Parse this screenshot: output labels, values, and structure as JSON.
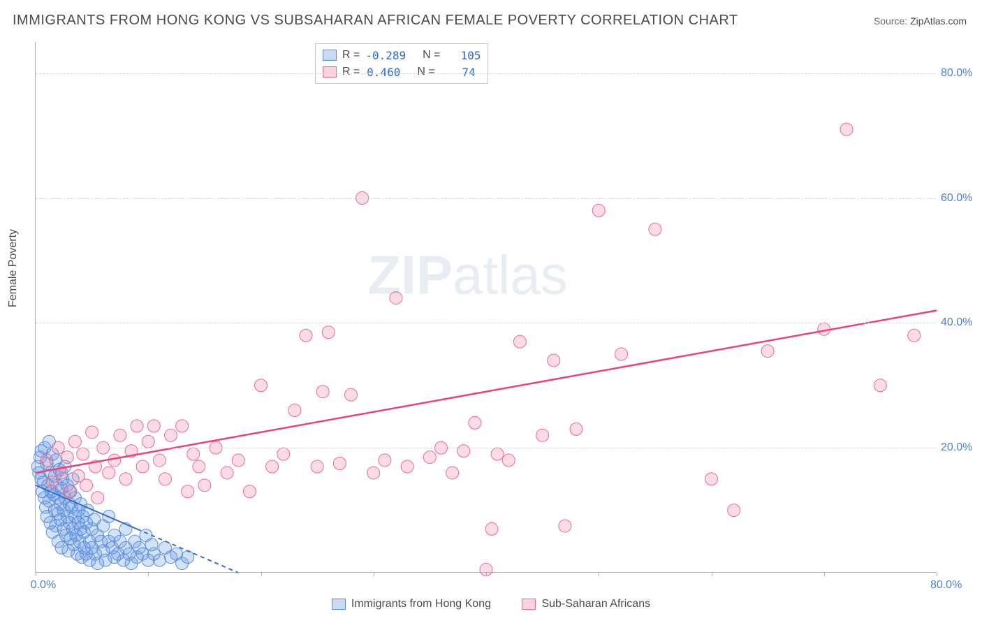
{
  "title": "IMMIGRANTS FROM HONG KONG VS SUBSAHARAN AFRICAN FEMALE POVERTY CORRELATION CHART",
  "source_label": "Source:",
  "source_value": "ZipAtlas.com",
  "y_axis_label": "Female Poverty",
  "watermark_a": "ZIP",
  "watermark_b": "atlas",
  "chart": {
    "type": "scatter",
    "background_color": "#ffffff",
    "grid_color": "#d8d8d8",
    "axis_color": "#b0b0b0",
    "xlim": [
      0,
      80
    ],
    "ylim": [
      0,
      85
    ],
    "x_ticks": [
      0,
      10,
      20,
      30,
      40,
      50,
      60,
      70,
      80
    ],
    "x_tick_labels_shown": {
      "0": "0.0%",
      "80": "80.0%"
    },
    "y_ticks": [
      20,
      40,
      60,
      80
    ],
    "y_tick_labels": [
      "20.0%",
      "40.0%",
      "60.0%",
      "80.0%"
    ],
    "series": [
      {
        "name": "Immigrants from Hong Kong",
        "color_fill": "rgba(100,150,230,0.28)",
        "color_stroke": "#5a8fd8",
        "marker_radius": 9,
        "R": "-0.289",
        "N": "105",
        "trend": {
          "x1": 0,
          "y1": 14,
          "x2": 18,
          "y2": 0,
          "solid_until_x": 9,
          "color": "#3a6fc8",
          "width": 2
        },
        "points": [
          [
            0.2,
            17
          ],
          [
            0.3,
            16
          ],
          [
            0.4,
            18.5
          ],
          [
            0.5,
            15
          ],
          [
            0.5,
            19.5
          ],
          [
            0.6,
            13
          ],
          [
            0.7,
            14.5
          ],
          [
            0.8,
            20
          ],
          [
            0.8,
            12
          ],
          [
            0.9,
            10.5
          ],
          [
            1.0,
            17.5
          ],
          [
            1.0,
            9
          ],
          [
            1.1,
            14
          ],
          [
            1.2,
            21
          ],
          [
            1.2,
            11.5
          ],
          [
            1.3,
            8
          ],
          [
            1.3,
            16
          ],
          [
            1.4,
            13
          ],
          [
            1.5,
            19
          ],
          [
            1.5,
            6.5
          ],
          [
            1.6,
            12.5
          ],
          [
            1.7,
            10
          ],
          [
            1.7,
            15.5
          ],
          [
            1.8,
            7.5
          ],
          [
            1.8,
            18
          ],
          [
            1.9,
            14
          ],
          [
            2.0,
            5
          ],
          [
            2.0,
            12
          ],
          [
            2.0,
            9.5
          ],
          [
            2.1,
            16.5
          ],
          [
            2.2,
            8.5
          ],
          [
            2.2,
            11
          ],
          [
            2.3,
            13.5
          ],
          [
            2.3,
            4
          ],
          [
            2.4,
            15
          ],
          [
            2.5,
            10
          ],
          [
            2.5,
            7
          ],
          [
            2.6,
            17
          ],
          [
            2.6,
            12
          ],
          [
            2.7,
            6
          ],
          [
            2.8,
            9
          ],
          [
            2.8,
            14
          ],
          [
            2.9,
            3.5
          ],
          [
            3.0,
            11
          ],
          [
            3.0,
            8
          ],
          [
            3.1,
            5.5
          ],
          [
            3.1,
            13
          ],
          [
            3.2,
            10.5
          ],
          [
            3.3,
            7
          ],
          [
            3.3,
            15
          ],
          [
            3.4,
            4.5
          ],
          [
            3.5,
            9
          ],
          [
            3.5,
            12
          ],
          [
            3.6,
            6
          ],
          [
            3.7,
            3
          ],
          [
            3.8,
            10
          ],
          [
            3.8,
            8
          ],
          [
            3.9,
            5
          ],
          [
            4.0,
            11
          ],
          [
            4.0,
            7
          ],
          [
            4.1,
            2.5
          ],
          [
            4.2,
            9
          ],
          [
            4.3,
            4
          ],
          [
            4.3,
            6.5
          ],
          [
            4.5,
            8
          ],
          [
            4.5,
            3
          ],
          [
            4.6,
            10
          ],
          [
            4.8,
            5
          ],
          [
            4.8,
            2
          ],
          [
            5.0,
            7
          ],
          [
            5.0,
            4
          ],
          [
            5.2,
            8.5
          ],
          [
            5.3,
            3
          ],
          [
            5.5,
            6
          ],
          [
            5.5,
            1.5
          ],
          [
            5.8,
            5
          ],
          [
            6.0,
            7.5
          ],
          [
            6.0,
            3.5
          ],
          [
            6.2,
            2
          ],
          [
            6.5,
            5
          ],
          [
            6.5,
            9
          ],
          [
            6.8,
            4
          ],
          [
            7.0,
            2.5
          ],
          [
            7.0,
            6
          ],
          [
            7.3,
            3
          ],
          [
            7.5,
            5
          ],
          [
            7.8,
            2
          ],
          [
            8.0,
            4
          ],
          [
            8.0,
            7
          ],
          [
            8.3,
            3
          ],
          [
            8.5,
            1.5
          ],
          [
            8.8,
            5
          ],
          [
            9.0,
            2.5
          ],
          [
            9.2,
            4
          ],
          [
            9.5,
            3
          ],
          [
            9.8,
            6
          ],
          [
            10.0,
            2
          ],
          [
            10.3,
            4.5
          ],
          [
            10.5,
            3
          ],
          [
            11.0,
            2
          ],
          [
            11.5,
            4
          ],
          [
            12.0,
            2.5
          ],
          [
            12.5,
            3
          ],
          [
            13.0,
            1.5
          ],
          [
            13.5,
            2.5
          ]
        ]
      },
      {
        "name": "Sub-Saharan Africans",
        "color_fill": "rgba(240,130,160,0.28)",
        "color_stroke": "#e86a94",
        "marker_radius": 9,
        "R": "0.460",
        "N": "74",
        "trend": {
          "x1": 0,
          "y1": 16,
          "x2": 80,
          "y2": 42,
          "color": "#e8447a",
          "width": 2.5
        },
        "points": [
          [
            1.0,
            18
          ],
          [
            1.5,
            14.5
          ],
          [
            2.0,
            20
          ],
          [
            2.3,
            16
          ],
          [
            2.8,
            18.5
          ],
          [
            3.0,
            13
          ],
          [
            3.5,
            21
          ],
          [
            3.8,
            15.5
          ],
          [
            4.2,
            19
          ],
          [
            4.5,
            14
          ],
          [
            5.0,
            22.5
          ],
          [
            5.3,
            17
          ],
          [
            5.5,
            12
          ],
          [
            6.0,
            20
          ],
          [
            6.5,
            16
          ],
          [
            7.0,
            18
          ],
          [
            7.5,
            22
          ],
          [
            8.0,
            15
          ],
          [
            8.5,
            19.5
          ],
          [
            9.0,
            23.5
          ],
          [
            9.5,
            17
          ],
          [
            10.0,
            21
          ],
          [
            10.5,
            23.5
          ],
          [
            11.0,
            18
          ],
          [
            11.5,
            15
          ],
          [
            12.0,
            22
          ],
          [
            13.0,
            23.5
          ],
          [
            13.5,
            13
          ],
          [
            14.0,
            19
          ],
          [
            14.5,
            17
          ],
          [
            15.0,
            14
          ],
          [
            16.0,
            20
          ],
          [
            17.0,
            16
          ],
          [
            18.0,
            18
          ],
          [
            19.0,
            13
          ],
          [
            20.0,
            30
          ],
          [
            21.0,
            17
          ],
          [
            22.0,
            19
          ],
          [
            23.0,
            26
          ],
          [
            24.0,
            38
          ],
          [
            25.0,
            17
          ],
          [
            25.5,
            29
          ],
          [
            26.0,
            38.5
          ],
          [
            27.0,
            17.5
          ],
          [
            28.0,
            28.5
          ],
          [
            29.0,
            60
          ],
          [
            30.0,
            16
          ],
          [
            31.0,
            18
          ],
          [
            32.0,
            44
          ],
          [
            33.0,
            17
          ],
          [
            35.0,
            18.5
          ],
          [
            36.0,
            20
          ],
          [
            37.0,
            16
          ],
          [
            38.0,
            19.5
          ],
          [
            39.0,
            24
          ],
          [
            40.0,
            0.5
          ],
          [
            40.5,
            7
          ],
          [
            41.0,
            19
          ],
          [
            42.0,
            18
          ],
          [
            43.0,
            37
          ],
          [
            45.0,
            22
          ],
          [
            46.0,
            34
          ],
          [
            47.0,
            7.5
          ],
          [
            48.0,
            23
          ],
          [
            50.0,
            58
          ],
          [
            52.0,
            35
          ],
          [
            55.0,
            55
          ],
          [
            60.0,
            15
          ],
          [
            62.0,
            10
          ],
          [
            65.0,
            35.5
          ],
          [
            70.0,
            39
          ],
          [
            72.0,
            71
          ],
          [
            75.0,
            30
          ],
          [
            78.0,
            38
          ]
        ]
      }
    ]
  },
  "stats_labels": {
    "R": "R =",
    "N": "N ="
  },
  "legend": {
    "series1_label": "Immigrants from Hong Kong",
    "series2_label": "Sub-Saharan Africans"
  }
}
